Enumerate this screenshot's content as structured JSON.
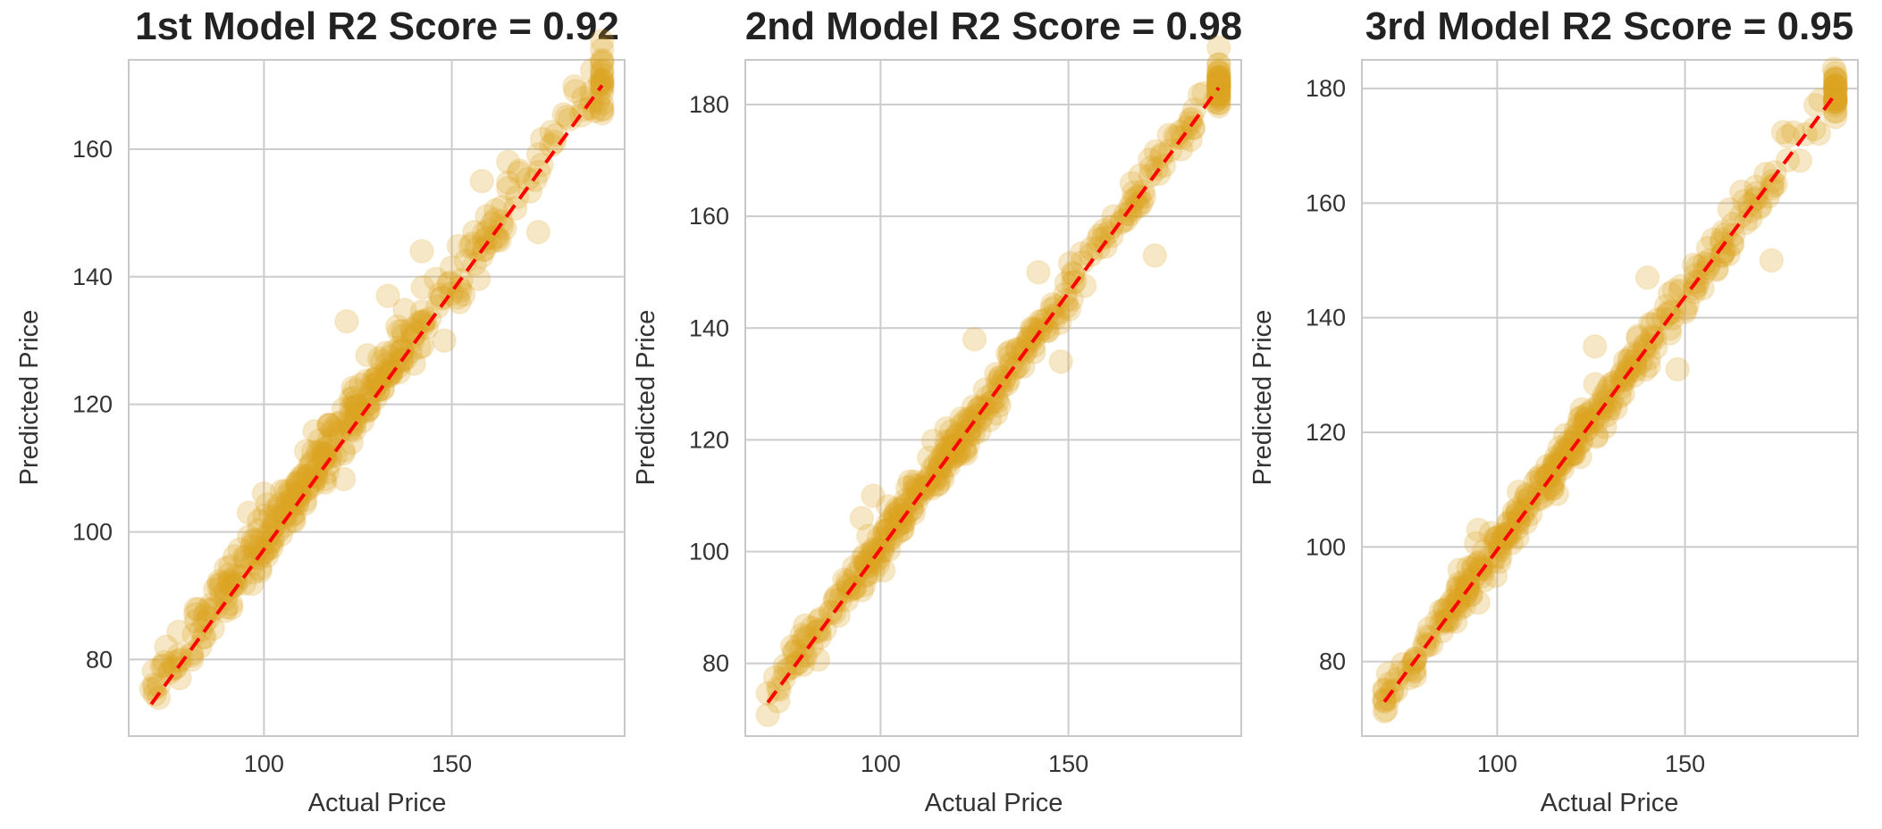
{
  "colors": {
    "points": "#DAA520",
    "reference_line": "#ff0000",
    "grid": "#cccccc"
  },
  "chart_data": [
    {
      "type": "scatter",
      "title": "1st Model R2 Score = 0.92",
      "xlabel": "Actual Price",
      "ylabel": "Predicted Price",
      "xlim": [
        64,
        196
      ],
      "ylim": [
        68,
        174
      ],
      "xticks": [
        100,
        150
      ],
      "yticks": [
        80,
        100,
        120,
        140,
        160
      ],
      "reference_line": {
        "from": [
          70,
          73
        ],
        "to": [
          190,
          170
        ]
      },
      "fit": {
        "x0": 70,
        "y0": 73,
        "x1": 190,
        "y1": 169,
        "offset": 2.0,
        "noise": 2.2,
        "n": 380
      },
      "points": [
        [
          87,
          91
        ],
        [
          83,
          82
        ],
        [
          78,
          80
        ],
        [
          74,
          82
        ],
        [
          72,
          74
        ],
        [
          122,
          133
        ],
        [
          142,
          144
        ],
        [
          148,
          130
        ],
        [
          173,
          147
        ],
        [
          158,
          155
        ],
        [
          165,
          158
        ],
        [
          185,
          168
        ],
        [
          188,
          166
        ],
        [
          156,
          147
        ],
        [
          100,
          106
        ],
        [
          96,
          103
        ],
        [
          133,
          137
        ]
      ],
      "grid": true
    },
    {
      "type": "scatter",
      "title": "2nd Model R2 Score = 0.98",
      "xlabel": "Actual Price",
      "ylabel": "Predicted Price",
      "xlim": [
        64,
        196
      ],
      "ylim": [
        67,
        188
      ],
      "xticks": [
        100,
        150
      ],
      "yticks": [
        80,
        100,
        120,
        140,
        160,
        180
      ],
      "reference_line": {
        "from": [
          70,
          73
        ],
        "to": [
          190,
          183
        ]
      },
      "fit": {
        "x0": 70,
        "y0": 73,
        "x1": 190,
        "y1": 183,
        "offset": 0.5,
        "noise": 1.8,
        "n": 380
      },
      "points": [
        [
          125,
          138
        ],
        [
          142,
          150
        ],
        [
          148,
          134
        ],
        [
          173,
          153
        ],
        [
          162,
          160
        ],
        [
          180,
          172
        ],
        [
          186,
          182
        ],
        [
          190,
          181
        ],
        [
          95,
          106
        ],
        [
          98,
          110
        ],
        [
          84,
          88
        ],
        [
          78,
          83
        ]
      ],
      "grid": true
    },
    {
      "type": "scatter",
      "title": "3rd Model R2 Score = 0.95",
      "xlabel": "Actual Price",
      "ylabel": "Predicted Price",
      "xlim": [
        64,
        196
      ],
      "ylim": [
        67,
        185
      ],
      "xticks": [
        100,
        150
      ],
      "yticks": [
        80,
        100,
        120,
        140,
        160,
        180
      ],
      "reference_line": {
        "from": [
          70,
          73
        ],
        "to": [
          190,
          179
        ]
      },
      "fit": {
        "x0": 70,
        "y0": 73,
        "x1": 190,
        "y1": 179,
        "offset": 0.5,
        "noise": 1.8,
        "n": 380
      },
      "points": [
        [
          126,
          135
        ],
        [
          140,
          147
        ],
        [
          148,
          131
        ],
        [
          173,
          150
        ],
        [
          165,
          162
        ],
        [
          182,
          172
        ],
        [
          186,
          178
        ],
        [
          190,
          176
        ],
        [
          95,
          103
        ],
        [
          90,
          96
        ],
        [
          84,
          87
        ],
        [
          78,
          80
        ]
      ],
      "grid": true
    }
  ]
}
